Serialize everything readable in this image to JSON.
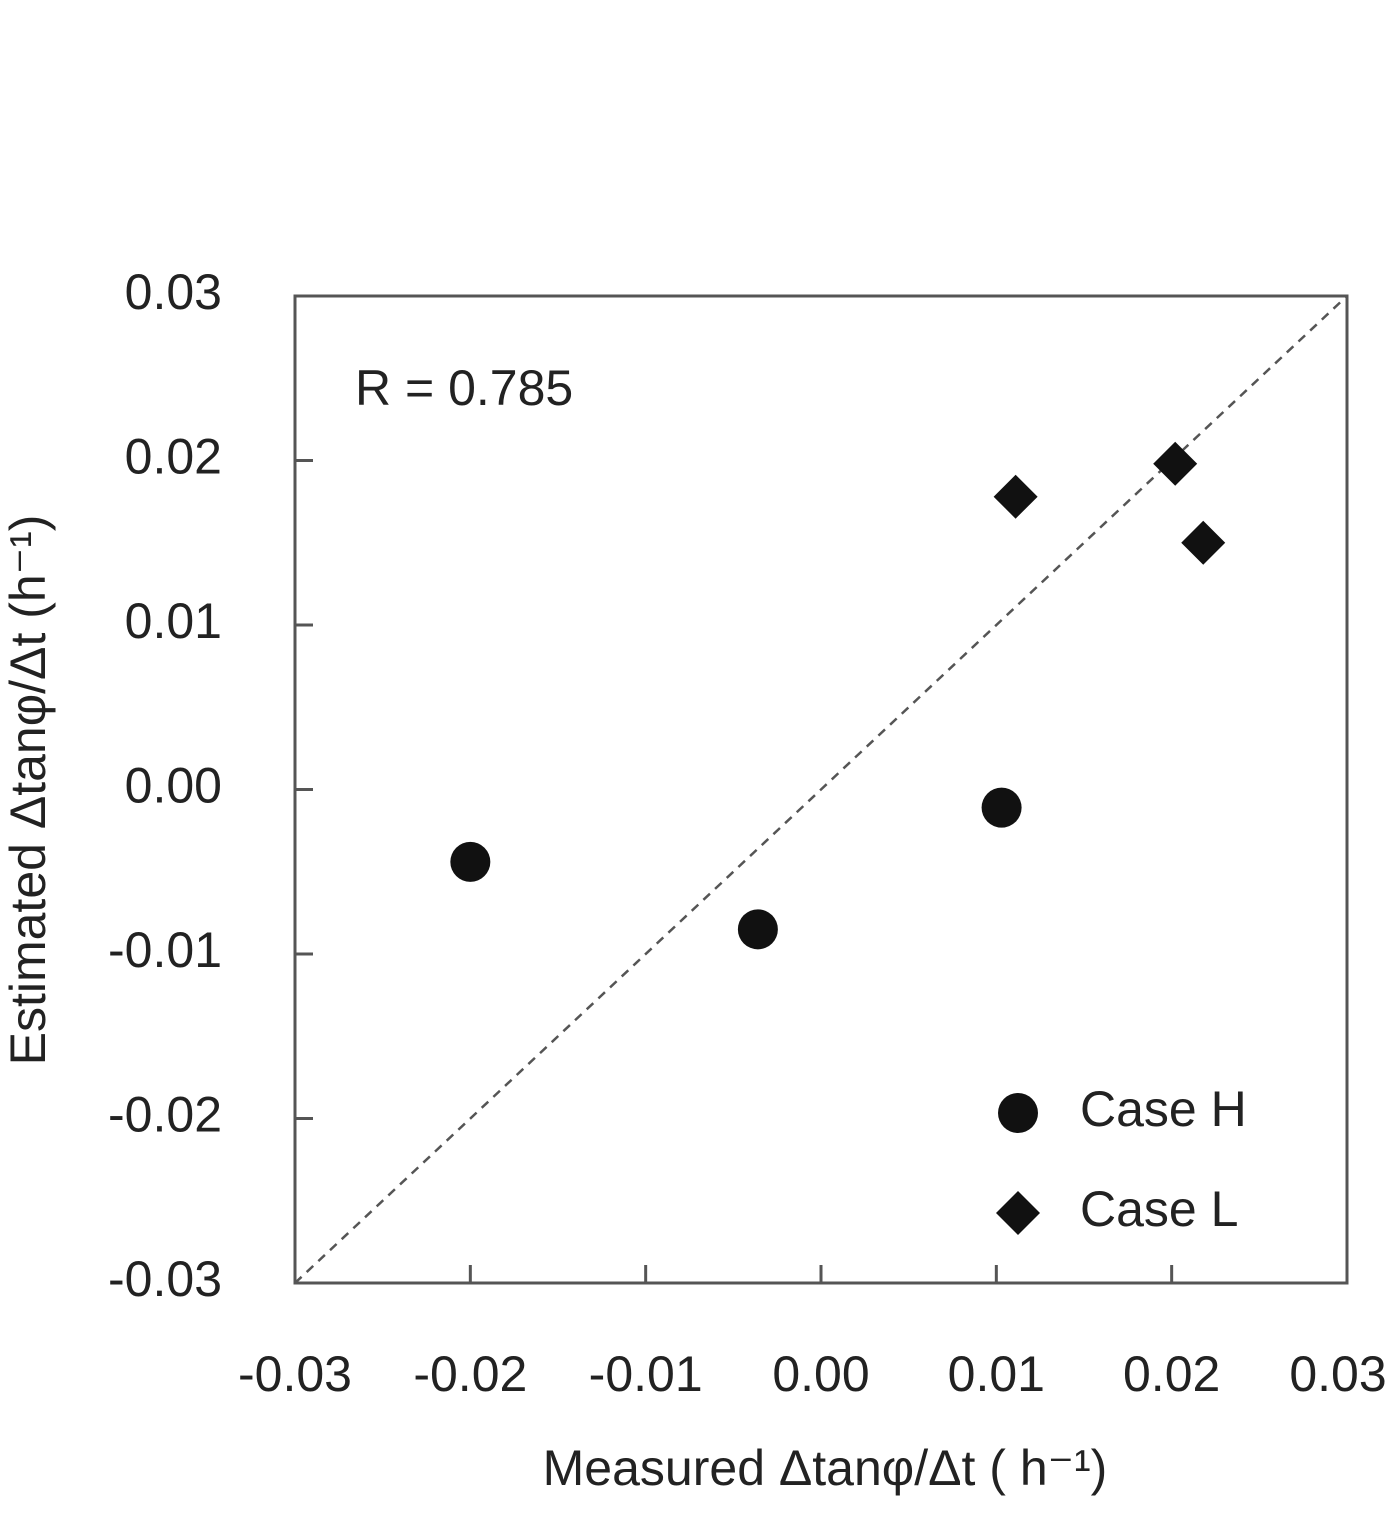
{
  "chart_data": {
    "type": "scatter",
    "annotation": "R = 0.785",
    "x_label": "Measured  Δtanφ/Δt  ( h⁻¹)",
    "y_label": "Estimated  Δtanφ/Δt  (h⁻¹)",
    "xlim": [
      -0.03,
      0.03
    ],
    "ylim": [
      -0.03,
      0.03
    ],
    "xticks": [
      -0.03,
      -0.02,
      -0.01,
      {
        "value": 0,
        "label": "0.00"
      },
      0.01,
      0.02,
      0.03
    ],
    "yticks": [
      -0.03,
      -0.02,
      -0.01,
      {
        "value": 0,
        "label": "0.00"
      },
      0.01,
      0.02,
      0.03
    ],
    "identity_line": true,
    "legend": "lower right",
    "series": [
      {
        "name": "Case H",
        "marker": "circle",
        "color": "#111111",
        "x": [
          -0.02,
          -0.0036,
          0.0103
        ],
        "values": [
          -0.0044,
          -0.0085,
          -0.0011
        ]
      },
      {
        "name": "Case L",
        "marker": "diamond",
        "color": "#111111",
        "x": [
          0.0111,
          0.0202,
          0.0218
        ],
        "values": [
          0.0178,
          0.0198,
          0.015
        ]
      }
    ]
  }
}
